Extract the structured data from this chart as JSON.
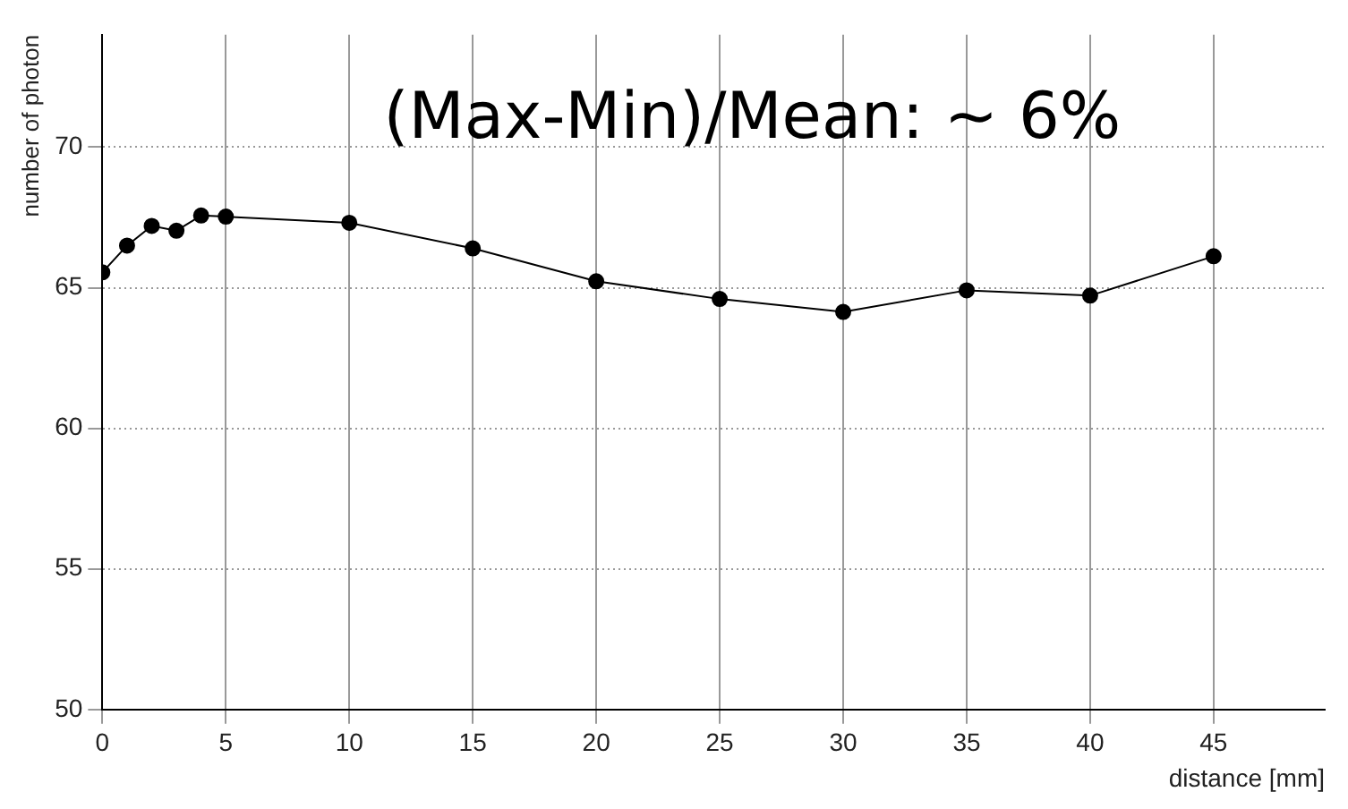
{
  "chart_data": {
    "type": "line",
    "xlabel": "distance [mm]",
    "ylabel": "number of photon",
    "x": [
      0,
      1,
      2,
      3,
      4,
      5,
      10,
      15,
      20,
      25,
      30,
      35,
      40,
      45
    ],
    "series": [
      {
        "color": "#000000",
        "values": [
          65.55,
          66.5,
          67.2,
          67.03,
          67.57,
          67.53,
          67.31,
          66.4,
          65.23,
          64.6,
          64.14,
          64.91,
          64.72,
          66.12
        ]
      }
    ],
    "xlim": [
      0,
      49.5
    ],
    "xticks": [
      0,
      5,
      10,
      15,
      20,
      25,
      30,
      35,
      40,
      45
    ],
    "ylim": [
      50,
      74
    ],
    "yticks": [
      50,
      55,
      60,
      65,
      70
    ],
    "grid": true,
    "marker": "circle",
    "line_style": "solid",
    "legend": false,
    "annotations": [
      "(Max-Min)/Mean: ~ 6%"
    ]
  }
}
